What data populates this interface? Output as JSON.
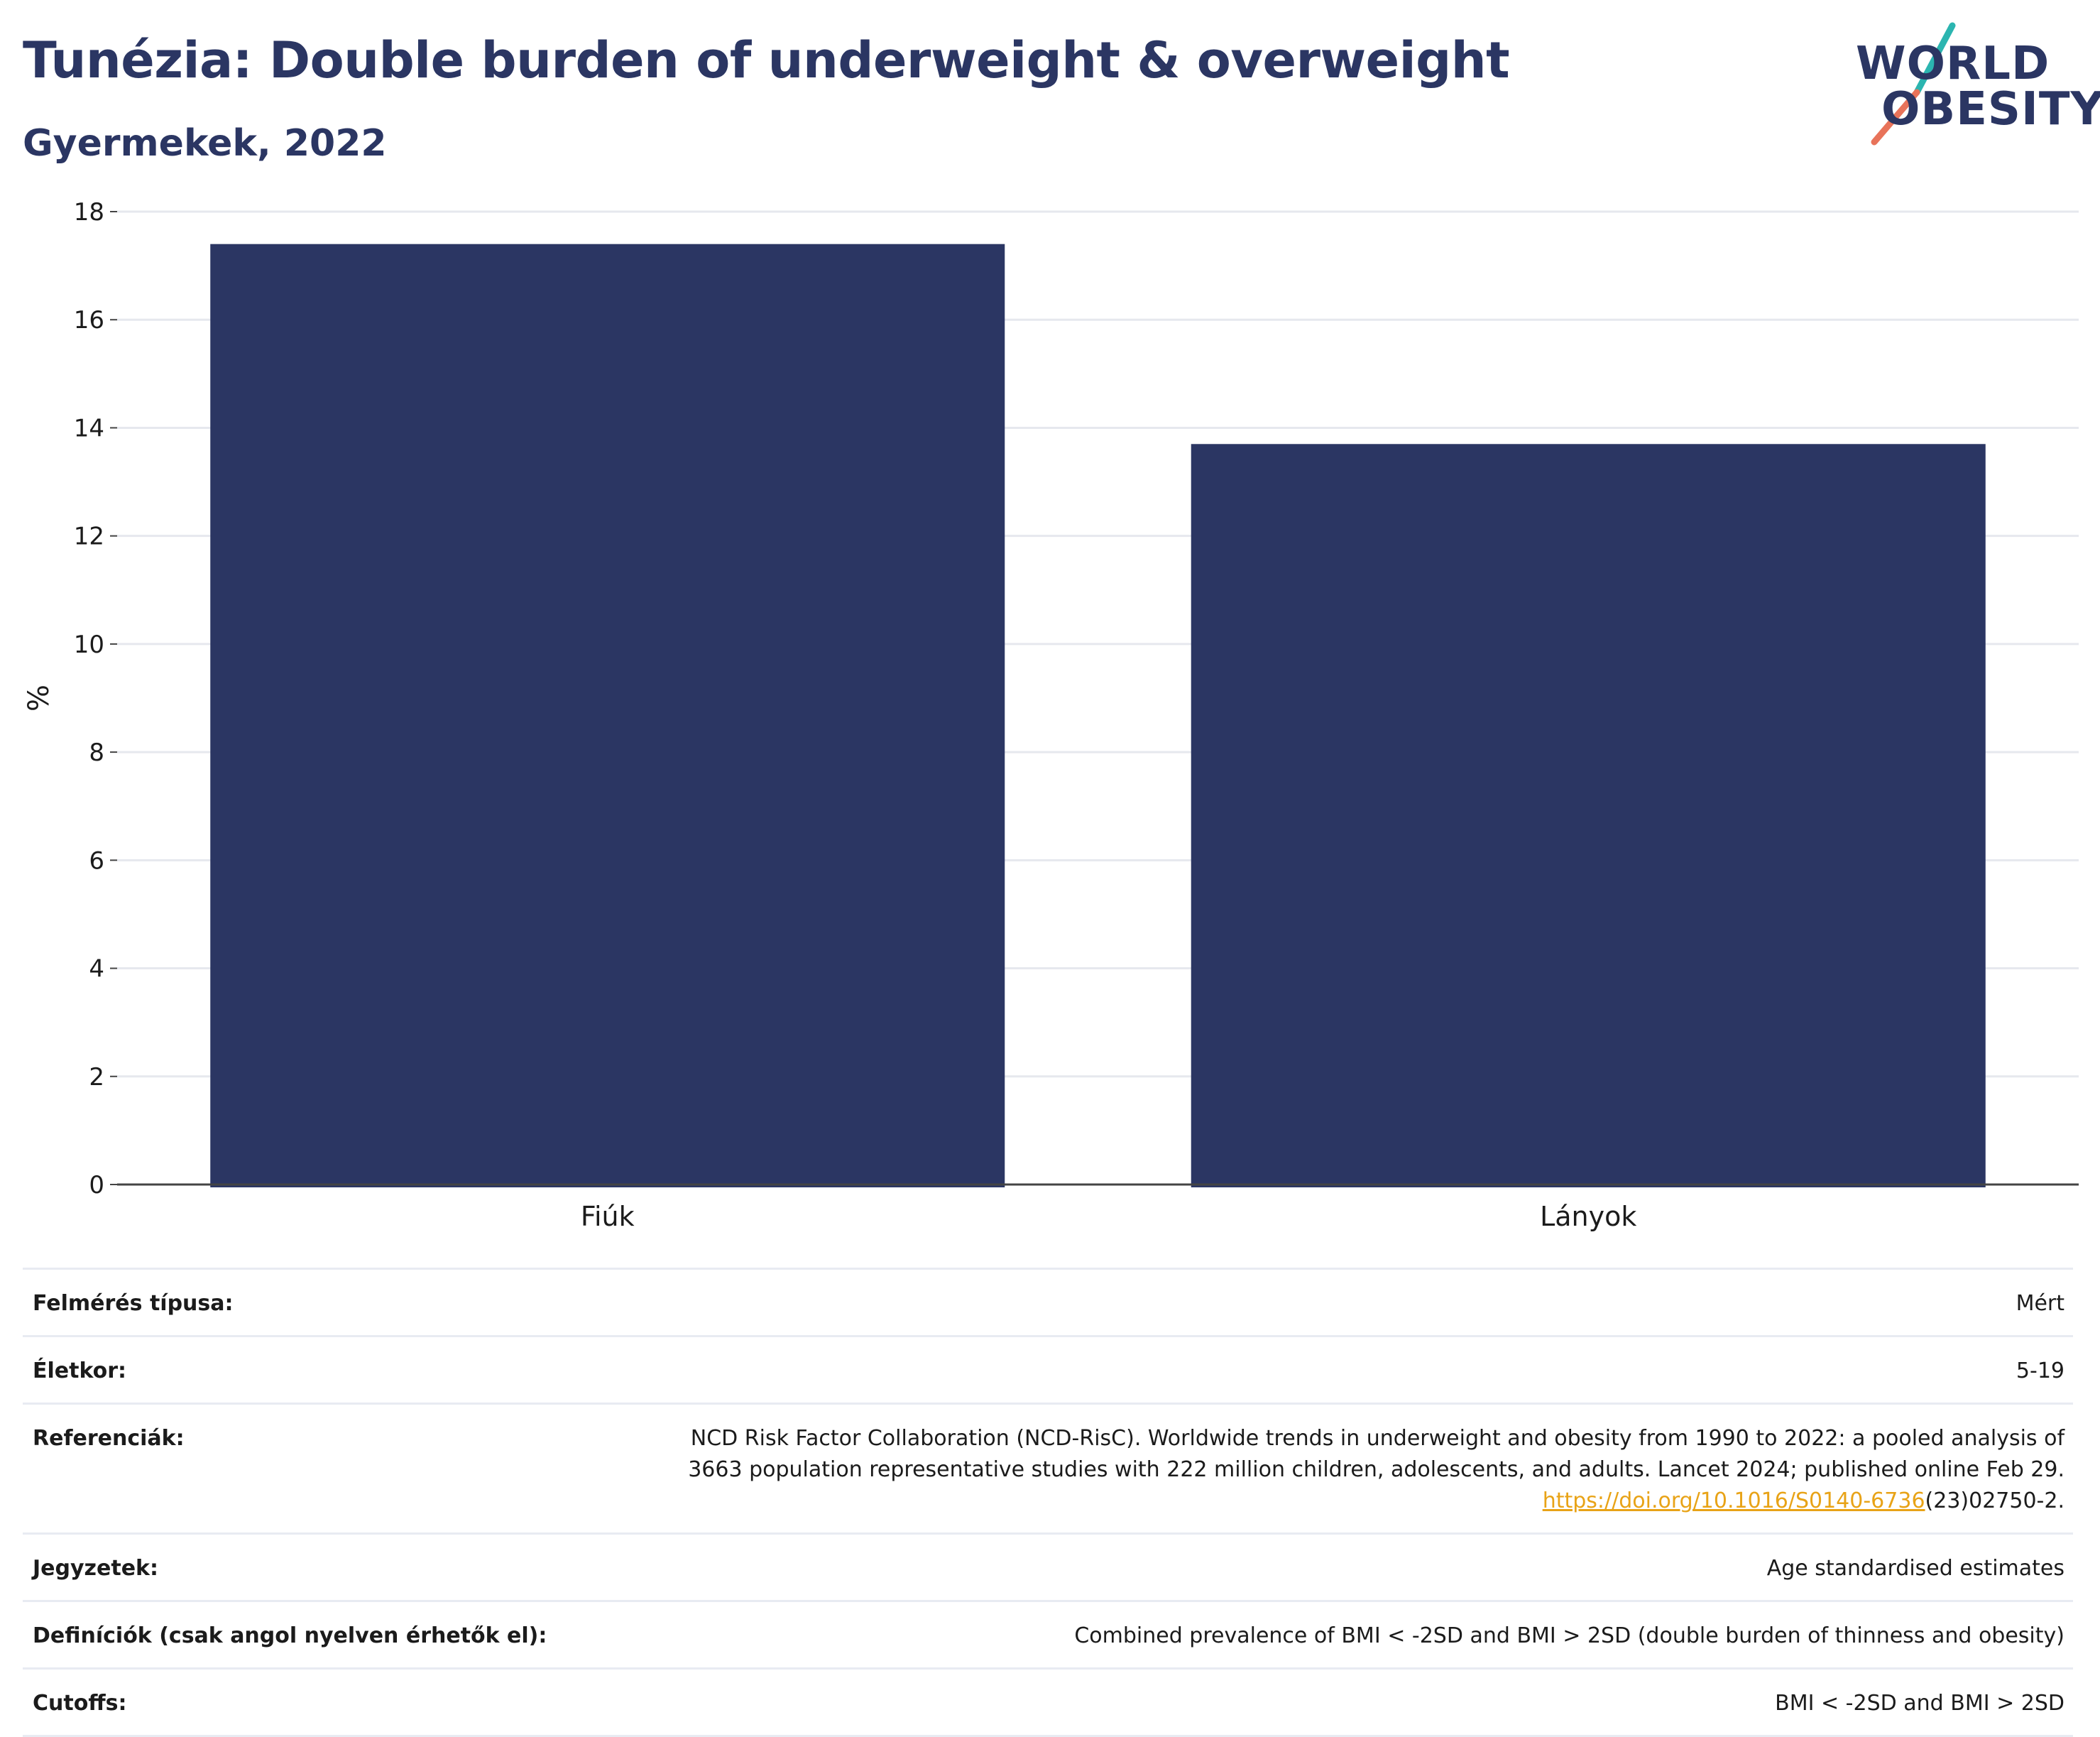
{
  "header": {
    "title": "Tunézia: Double burden of underweight & overweight",
    "subtitle": "Gyermekek, 2022"
  },
  "logo": {
    "line1": "WORLD",
    "line2": "OBESITY",
    "colors": {
      "text": "#2b3663",
      "slash_top": "#2bb5b0",
      "slash_bottom": "#e8735a"
    }
  },
  "chart_data": {
    "type": "bar",
    "categories": [
      "Fiúk",
      "Lányok"
    ],
    "values": [
      17.4,
      13.7
    ],
    "ylabel": "%",
    "xlabel": "",
    "ylim": [
      0,
      18
    ],
    "yticks": [
      0,
      2,
      4,
      6,
      8,
      10,
      12,
      14,
      16,
      18
    ],
    "grid": true,
    "bar_color": "#2b3663"
  },
  "meta": [
    {
      "label": "Felmérés típusa:",
      "value": "Mért"
    },
    {
      "label": "Életkor:",
      "value": "5-19"
    },
    {
      "label": "Referenciák:",
      "value_lines": [
        "NCD Risk Factor Collaboration (NCD-RisC). Worldwide trends in underweight and obesity from 1990 to 2022: a pooled analysis of",
        "3663 population representative studies with 222 million children, adolescents, and adults. Lancet 2024; published online Feb 29."
      ],
      "link": "https://doi.org/10.1016/S0140-6736",
      "link_suffix": "(23)02750-2."
    },
    {
      "label": "Jegyzetek:",
      "value": "Age standardised estimates"
    },
    {
      "label": "Definíciók (csak angol nyelven érhetők el):",
      "value": "Combined prevalence of BMI < -2SD and BMI > 2SD (double burden of thinness and obesity)"
    },
    {
      "label": "Cutoffs:",
      "value": "BMI < -2SD and BMI > 2SD"
    }
  ]
}
